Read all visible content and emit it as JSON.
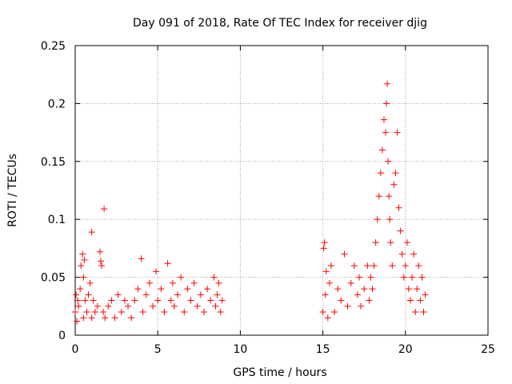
{
  "chart_data": {
    "type": "scatter",
    "title": "Day 091 of 2018, Rate Of TEC Index for receiver djig",
    "xlabel": "GPS time / hours",
    "ylabel": "ROTI / TECUs",
    "xlim": [
      0,
      25
    ],
    "ylim": [
      0,
      0.25
    ],
    "x_ticks": [
      0,
      5,
      10,
      15,
      20,
      25
    ],
    "x_tick_labels": [
      "0",
      "5",
      "10",
      "15",
      "20",
      "25"
    ],
    "y_ticks": [
      0,
      0.05,
      0.1,
      0.15,
      0.2,
      0.25
    ],
    "y_tick_labels": [
      "0",
      "0.05",
      "0.1",
      "0.15",
      "0.2",
      "0.25"
    ],
    "grid": true,
    "marker": "+",
    "color": "#ff0000",
    "series": [
      {
        "name": "ROTI",
        "x": [
          0.0,
          0.05,
          0.1,
          0.15,
          0.2,
          0.3,
          0.35,
          0.45,
          0.5,
          0.5,
          0.55,
          0.6,
          0.7,
          0.8,
          0.9,
          1.0,
          1.0,
          1.1,
          1.2,
          1.35,
          1.5,
          1.55,
          1.6,
          1.7,
          1.75,
          1.8,
          2.0,
          2.2,
          2.4,
          2.6,
          2.8,
          3.0,
          3.2,
          3.4,
          3.6,
          3.8,
          4.0,
          4.1,
          4.3,
          4.5,
          4.7,
          4.9,
          5.0,
          5.2,
          5.4,
          5.6,
          5.8,
          5.9,
          6.0,
          6.2,
          6.4,
          6.6,
          6.8,
          7.0,
          7.2,
          7.4,
          7.6,
          7.8,
          8.0,
          8.2,
          8.4,
          8.5,
          8.6,
          8.7,
          8.8,
          8.9,
          15.0,
          15.05,
          15.1,
          15.15,
          15.2,
          15.3,
          15.4,
          15.5,
          15.7,
          15.9,
          16.1,
          16.3,
          16.5,
          16.7,
          16.9,
          17.1,
          17.2,
          17.3,
          17.5,
          17.7,
          17.8,
          17.9,
          18.0,
          18.1,
          18.2,
          18.3,
          18.4,
          18.5,
          18.6,
          18.7,
          18.8,
          18.85,
          18.9,
          18.95,
          19.0,
          19.05,
          19.1,
          19.2,
          19.3,
          19.4,
          19.5,
          19.6,
          19.7,
          19.8,
          19.9,
          20.0,
          20.1,
          20.2,
          20.3,
          20.4,
          20.5,
          20.6,
          20.7,
          20.8,
          20.9,
          21.0,
          21.1,
          21.2
        ],
        "values": [
          0.02,
          0.035,
          0.012,
          0.03,
          0.025,
          0.04,
          0.06,
          0.07,
          0.05,
          0.015,
          0.065,
          0.03,
          0.02,
          0.035,
          0.045,
          0.089,
          0.015,
          0.03,
          0.02,
          0.025,
          0.072,
          0.064,
          0.06,
          0.02,
          0.109,
          0.015,
          0.025,
          0.03,
          0.015,
          0.035,
          0.02,
          0.03,
          0.025,
          0.015,
          0.03,
          0.04,
          0.066,
          0.02,
          0.035,
          0.045,
          0.025,
          0.055,
          0.03,
          0.04,
          0.02,
          0.062,
          0.03,
          0.045,
          0.025,
          0.035,
          0.05,
          0.02,
          0.04,
          0.03,
          0.045,
          0.025,
          0.035,
          0.02,
          0.04,
          0.03,
          0.05,
          0.025,
          0.035,
          0.045,
          0.02,
          0.03,
          0.02,
          0.075,
          0.08,
          0.035,
          0.055,
          0.015,
          0.045,
          0.06,
          0.02,
          0.04,
          0.03,
          0.07,
          0.025,
          0.045,
          0.06,
          0.035,
          0.05,
          0.025,
          0.04,
          0.06,
          0.03,
          0.05,
          0.04,
          0.06,
          0.08,
          0.1,
          0.12,
          0.14,
          0.16,
          0.186,
          0.175,
          0.2,
          0.217,
          0.15,
          0.12,
          0.1,
          0.08,
          0.06,
          0.13,
          0.14,
          0.175,
          0.11,
          0.09,
          0.07,
          0.05,
          0.06,
          0.08,
          0.04,
          0.03,
          0.05,
          0.07,
          0.02,
          0.04,
          0.06,
          0.03,
          0.05,
          0.02,
          0.035
        ]
      }
    ]
  }
}
